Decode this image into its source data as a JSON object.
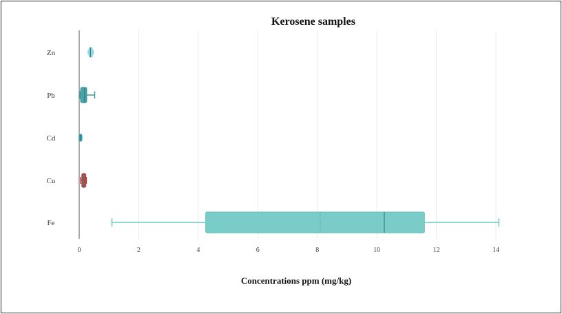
{
  "chart_data": {
    "type": "box",
    "title": "Kerosene samples",
    "xlabel": "Concentrations ppm (mg/kg)",
    "ylabel": "",
    "xlim": [
      0,
      14
    ],
    "xticks": [
      0,
      2,
      4,
      6,
      8,
      10,
      12,
      14
    ],
    "grid": true,
    "orientation": "horizontal",
    "categories": [
      "Zn",
      "Pb",
      "Cd",
      "Cu",
      "Fe"
    ],
    "series": [
      {
        "label": "Zn",
        "color": "#8fd3e6",
        "min": 0.3,
        "q1": 0.33,
        "median": 0.38,
        "q3": 0.44,
        "max": 0.47
      },
      {
        "label": "Pb",
        "color": "#3a9a9c",
        "min": 0.02,
        "q1": 0.05,
        "median": 0.18,
        "q3": 0.25,
        "max": 0.52
      },
      {
        "label": "Cd",
        "color": "#2e9fb0",
        "min": 0.0,
        "q1": 0.02,
        "median": 0.04,
        "q3": 0.06,
        "max": 0.08
      },
      {
        "label": "Cu",
        "color": "#b33a3a",
        "min": 0.05,
        "q1": 0.09,
        "median": 0.15,
        "q3": 0.22,
        "max": 0.24
      },
      {
        "label": "Fe",
        "color": "#6cc7c2",
        "min": 1.1,
        "q1": 4.25,
        "median": 10.25,
        "mean": 8.1,
        "q3": 11.6,
        "max": 14.1
      }
    ]
  }
}
